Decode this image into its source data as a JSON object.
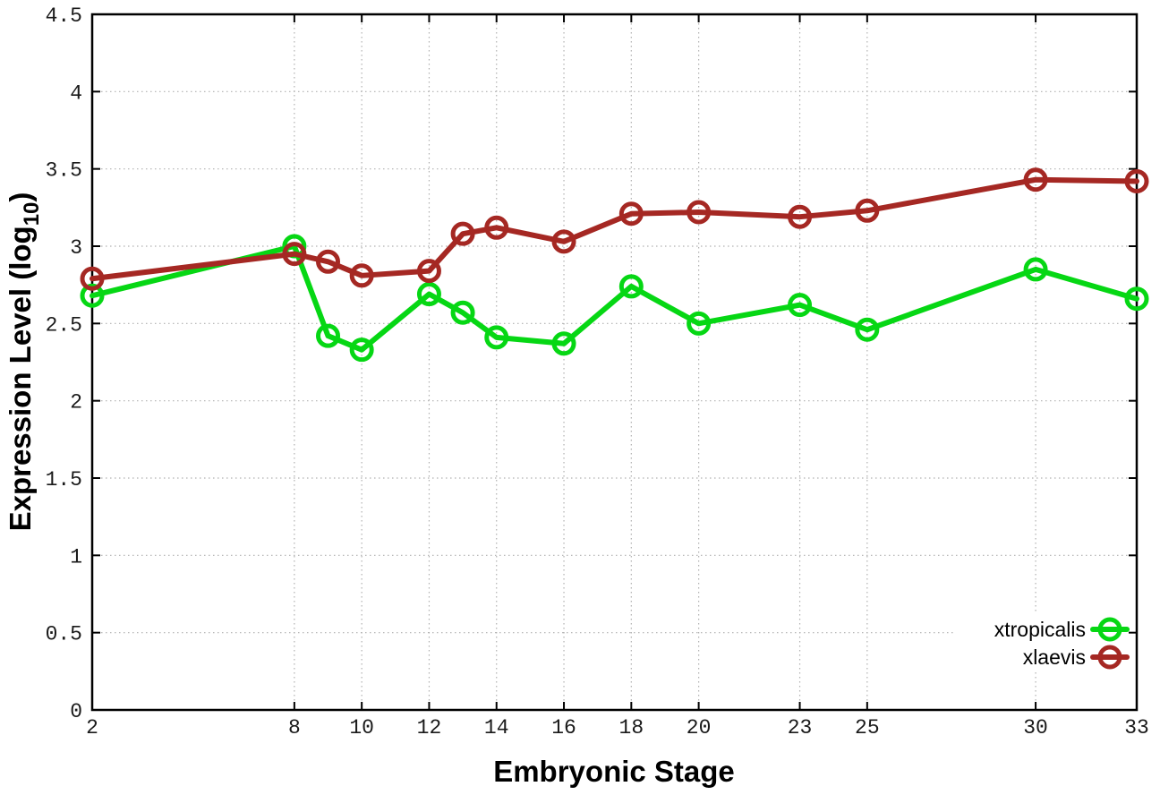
{
  "chart_data": {
    "type": "line",
    "title": "",
    "xlabel": "Embryonic Stage",
    "ylabel": {
      "main": "Expression Level (log",
      "sub": "10",
      "end": ")"
    },
    "x": [
      2,
      8,
      9,
      10,
      12,
      13,
      14,
      16,
      18,
      20,
      23,
      25,
      30,
      33
    ],
    "x_tick_labels": [
      "2",
      "8",
      "10",
      "12",
      "14",
      "16",
      "18",
      "20",
      "23",
      "25",
      "30",
      "33"
    ],
    "x_tick_values": [
      2,
      8,
      10,
      12,
      14,
      16,
      18,
      20,
      23,
      25,
      30,
      33
    ],
    "y_tick_labels": [
      "0",
      "0.5",
      "1",
      "1.5",
      "2",
      "2.5",
      "3",
      "3.5",
      "4",
      "4.5"
    ],
    "y_tick_values": [
      0,
      0.5,
      1,
      1.5,
      2,
      2.5,
      3,
      3.5,
      4,
      4.5
    ],
    "xlim": [
      2,
      33
    ],
    "ylim": [
      0,
      4.5
    ],
    "grid": true,
    "legend_position": "bottom-right",
    "marker": "open-circle",
    "series": [
      {
        "name": "xtropicalis",
        "color": "#06d714",
        "values": [
          2.68,
          3.0,
          2.42,
          2.33,
          2.69,
          2.57,
          2.41,
          2.37,
          2.74,
          2.5,
          2.62,
          2.46,
          2.85,
          2.66
        ]
      },
      {
        "name": "xlaevis",
        "color": "#a52823",
        "values": [
          2.79,
          2.95,
          2.9,
          2.81,
          2.84,
          3.08,
          3.12,
          3.03,
          3.21,
          3.22,
          3.19,
          3.23,
          3.43,
          3.42
        ]
      }
    ],
    "colors": {
      "axis": "#000000",
      "grid": "#b0b0b0",
      "tick_text": "#1a1a1a",
      "background": "#ffffff"
    }
  }
}
